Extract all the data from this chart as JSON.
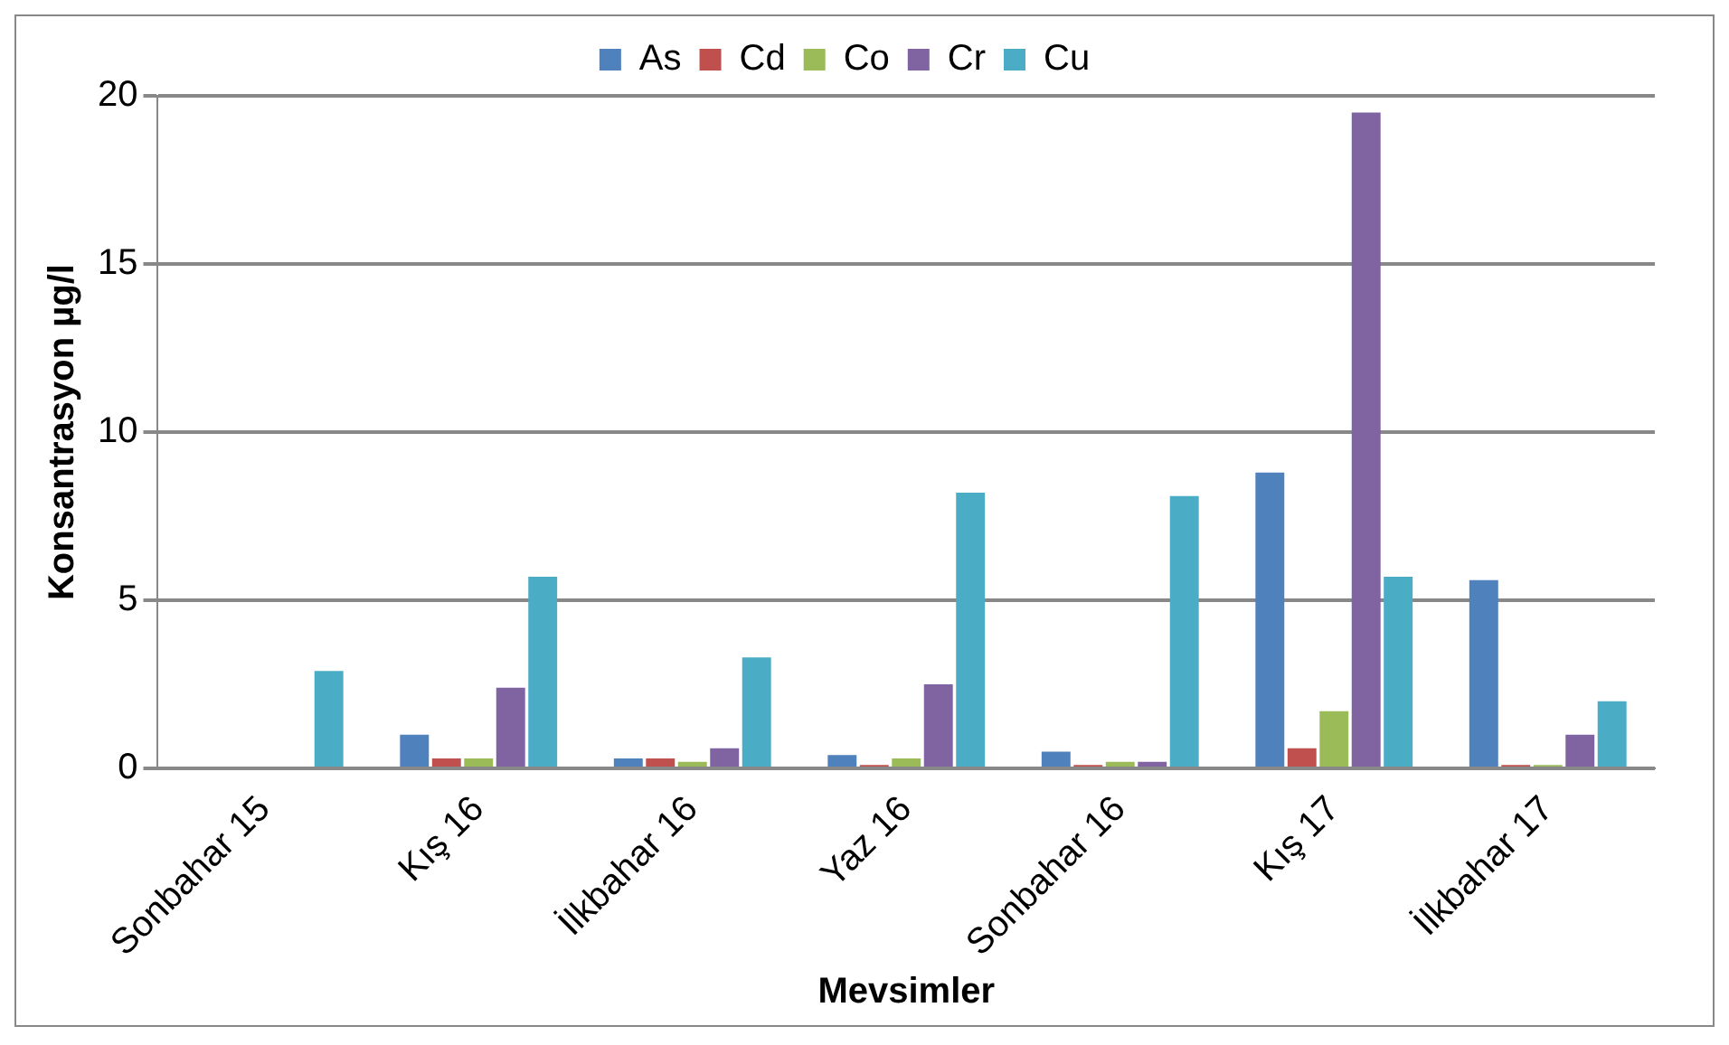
{
  "chart_data": {
    "type": "bar",
    "xlabel": "Mevsimler",
    "ylabel": "Konsantrasyon µg/l",
    "categories": [
      "Sonbahar 15",
      "Kış 16",
      "İlkbahar 16",
      "Yaz 16",
      "Sonbahar 16",
      "Kış 17",
      "İlkbahar 17"
    ],
    "series": [
      {
        "name": "As",
        "color": "#4f81bd",
        "values": [
          0,
          1.0,
          0.3,
          0.4,
          0.5,
          8.8,
          5.6
        ]
      },
      {
        "name": "Cd",
        "color": "#c0504d",
        "values": [
          0,
          0.3,
          0.3,
          0.1,
          0.1,
          0.6,
          0.1
        ]
      },
      {
        "name": "Co",
        "color": "#9bbb59",
        "values": [
          0,
          0.3,
          0.2,
          0.3,
          0.2,
          1.7,
          0.1
        ]
      },
      {
        "name": "Cr",
        "color": "#8064a2",
        "values": [
          0,
          2.4,
          0.6,
          2.5,
          0.2,
          19.5,
          1.0
        ]
      },
      {
        "name": "Cu",
        "color": "#4bacc6",
        "values": [
          2.9,
          5.7,
          3.3,
          8.2,
          8.1,
          5.7,
          2.0
        ]
      }
    ],
    "ylim": [
      0,
      20
    ],
    "yticks": [
      0,
      5,
      10,
      15,
      20
    ],
    "grid": "y",
    "legend": "top"
  }
}
